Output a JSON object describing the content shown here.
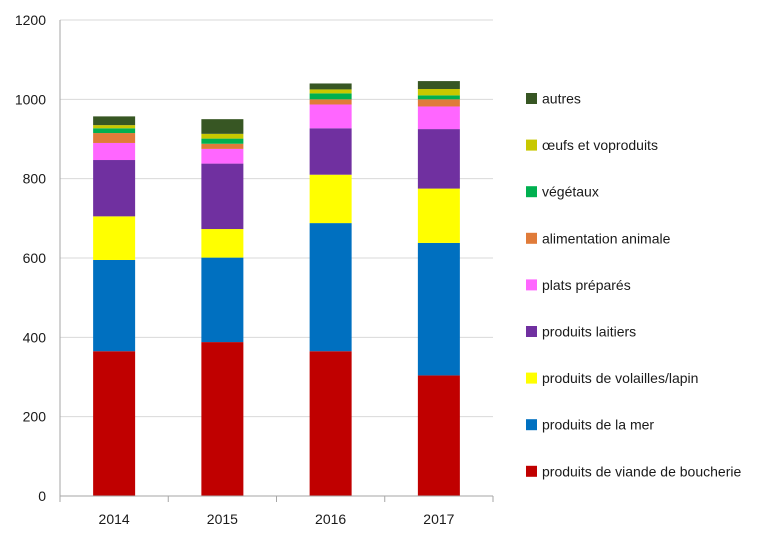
{
  "chart_data": {
    "type": "bar",
    "stacked": true,
    "categories": [
      "2014",
      "2015",
      "2016",
      "2017"
    ],
    "ylim": [
      0,
      1200
    ],
    "yticks": [
      "0",
      "200",
      "400",
      "600",
      "800",
      "1000",
      "1200"
    ],
    "grid": "horizontal",
    "legend_position": "right",
    "series": [
      {
        "name": "produits de viande de boucherie",
        "color": "#c00000",
        "values": [
          365,
          388,
          365,
          304
        ]
      },
      {
        "name": "produits de la mer",
        "color": "#0070c0",
        "values": [
          230,
          213,
          323,
          334
        ]
      },
      {
        "name": "produits de volailles/lapin",
        "color": "#ffff00",
        "values": [
          110,
          72,
          122,
          137
        ]
      },
      {
        "name": "produits laitiers",
        "color": "#7030a0",
        "values": [
          142,
          165,
          117,
          150
        ]
      },
      {
        "name": "plats préparés",
        "color": "#ff66ff",
        "values": [
          43,
          37,
          60,
          57
        ]
      },
      {
        "name": "alimentation animale",
        "color": "#e07b39",
        "values": [
          25,
          13,
          13,
          18
        ]
      },
      {
        "name": "végétaux",
        "color": "#00b050",
        "values": [
          12,
          13,
          15,
          10
        ]
      },
      {
        "name": "œufs et voproduits",
        "color": "#c8c800",
        "values": [
          8,
          12,
          10,
          16
        ]
      },
      {
        "name": "autres",
        "color": "#375623",
        "values": [
          22,
          37,
          15,
          20
        ]
      }
    ]
  }
}
